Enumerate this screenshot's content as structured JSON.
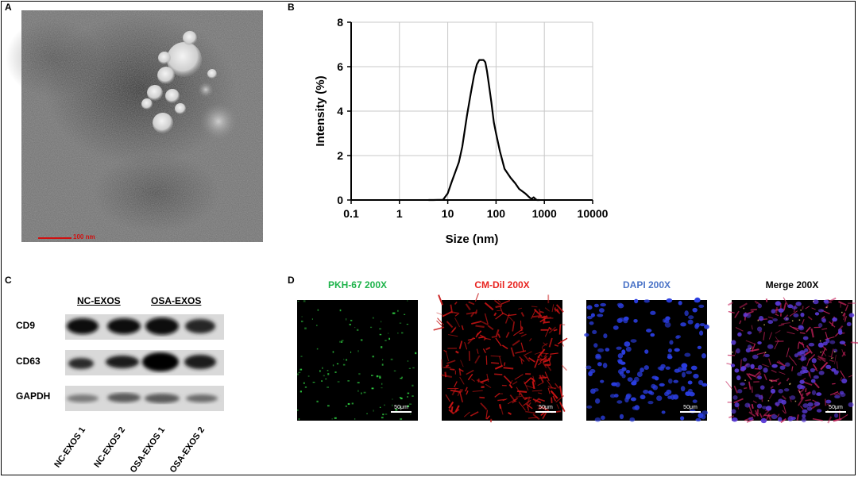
{
  "panels": {
    "a": {
      "label": "A",
      "scale_text": "100 nm"
    },
    "b": {
      "label": "B"
    },
    "c": {
      "label": "C"
    },
    "d": {
      "label": "D"
    }
  },
  "chart_data": {
    "type": "line",
    "title": "",
    "xlabel": "Size (nm)",
    "ylabel": "Intensity (%)",
    "x_scale": "log",
    "xlim": [
      0.1,
      10000
    ],
    "ylim": [
      0,
      8
    ],
    "grid": true,
    "x_ticks": [
      "0.1",
      "1",
      "10",
      "100",
      "1000",
      "10000"
    ],
    "y_ticks": [
      "0",
      "2",
      "4",
      "6",
      "8"
    ],
    "x": [
      5,
      8,
      10,
      12,
      14,
      17,
      20,
      25,
      30,
      35,
      40,
      45,
      50,
      55,
      60,
      65,
      70,
      80,
      90,
      100,
      120,
      150,
      200,
      250,
      300,
      400,
      500,
      550,
      600,
      650,
      700,
      800
    ],
    "y": [
      0,
      0.01,
      0.3,
      0.8,
      1.2,
      1.7,
      2.4,
      3.8,
      4.8,
      5.6,
      6.1,
      6.3,
      6.3,
      6.3,
      6.2,
      5.8,
      5.3,
      4.4,
      3.5,
      3.0,
      2.2,
      1.4,
      1.0,
      0.75,
      0.5,
      0.3,
      0.1,
      0.05,
      0.12,
      0.05,
      0.0,
      0.0
    ]
  },
  "western_blot": {
    "groups": [
      "NC-EXOS",
      "OSA-EXOS"
    ],
    "rows": [
      "CD9",
      "CD63",
      "GAPDH"
    ],
    "lanes": [
      "NC-EXOS 1",
      "NC-EXOS 2",
      "OSA-EXOS 1",
      "OSA-EXOS 2"
    ]
  },
  "fluorescence": [
    {
      "title": "PKH-67 200X",
      "color": "#1db34a",
      "scale": "50μm"
    },
    {
      "title": "CM-Dil 200X",
      "color": "#e8231f",
      "scale": "50μm"
    },
    {
      "title": "DAPI 200X",
      "color": "#4a73c7",
      "scale": "50μm"
    },
    {
      "title": "Merge 200X",
      "color": "#000000",
      "scale": "50μm"
    }
  ]
}
